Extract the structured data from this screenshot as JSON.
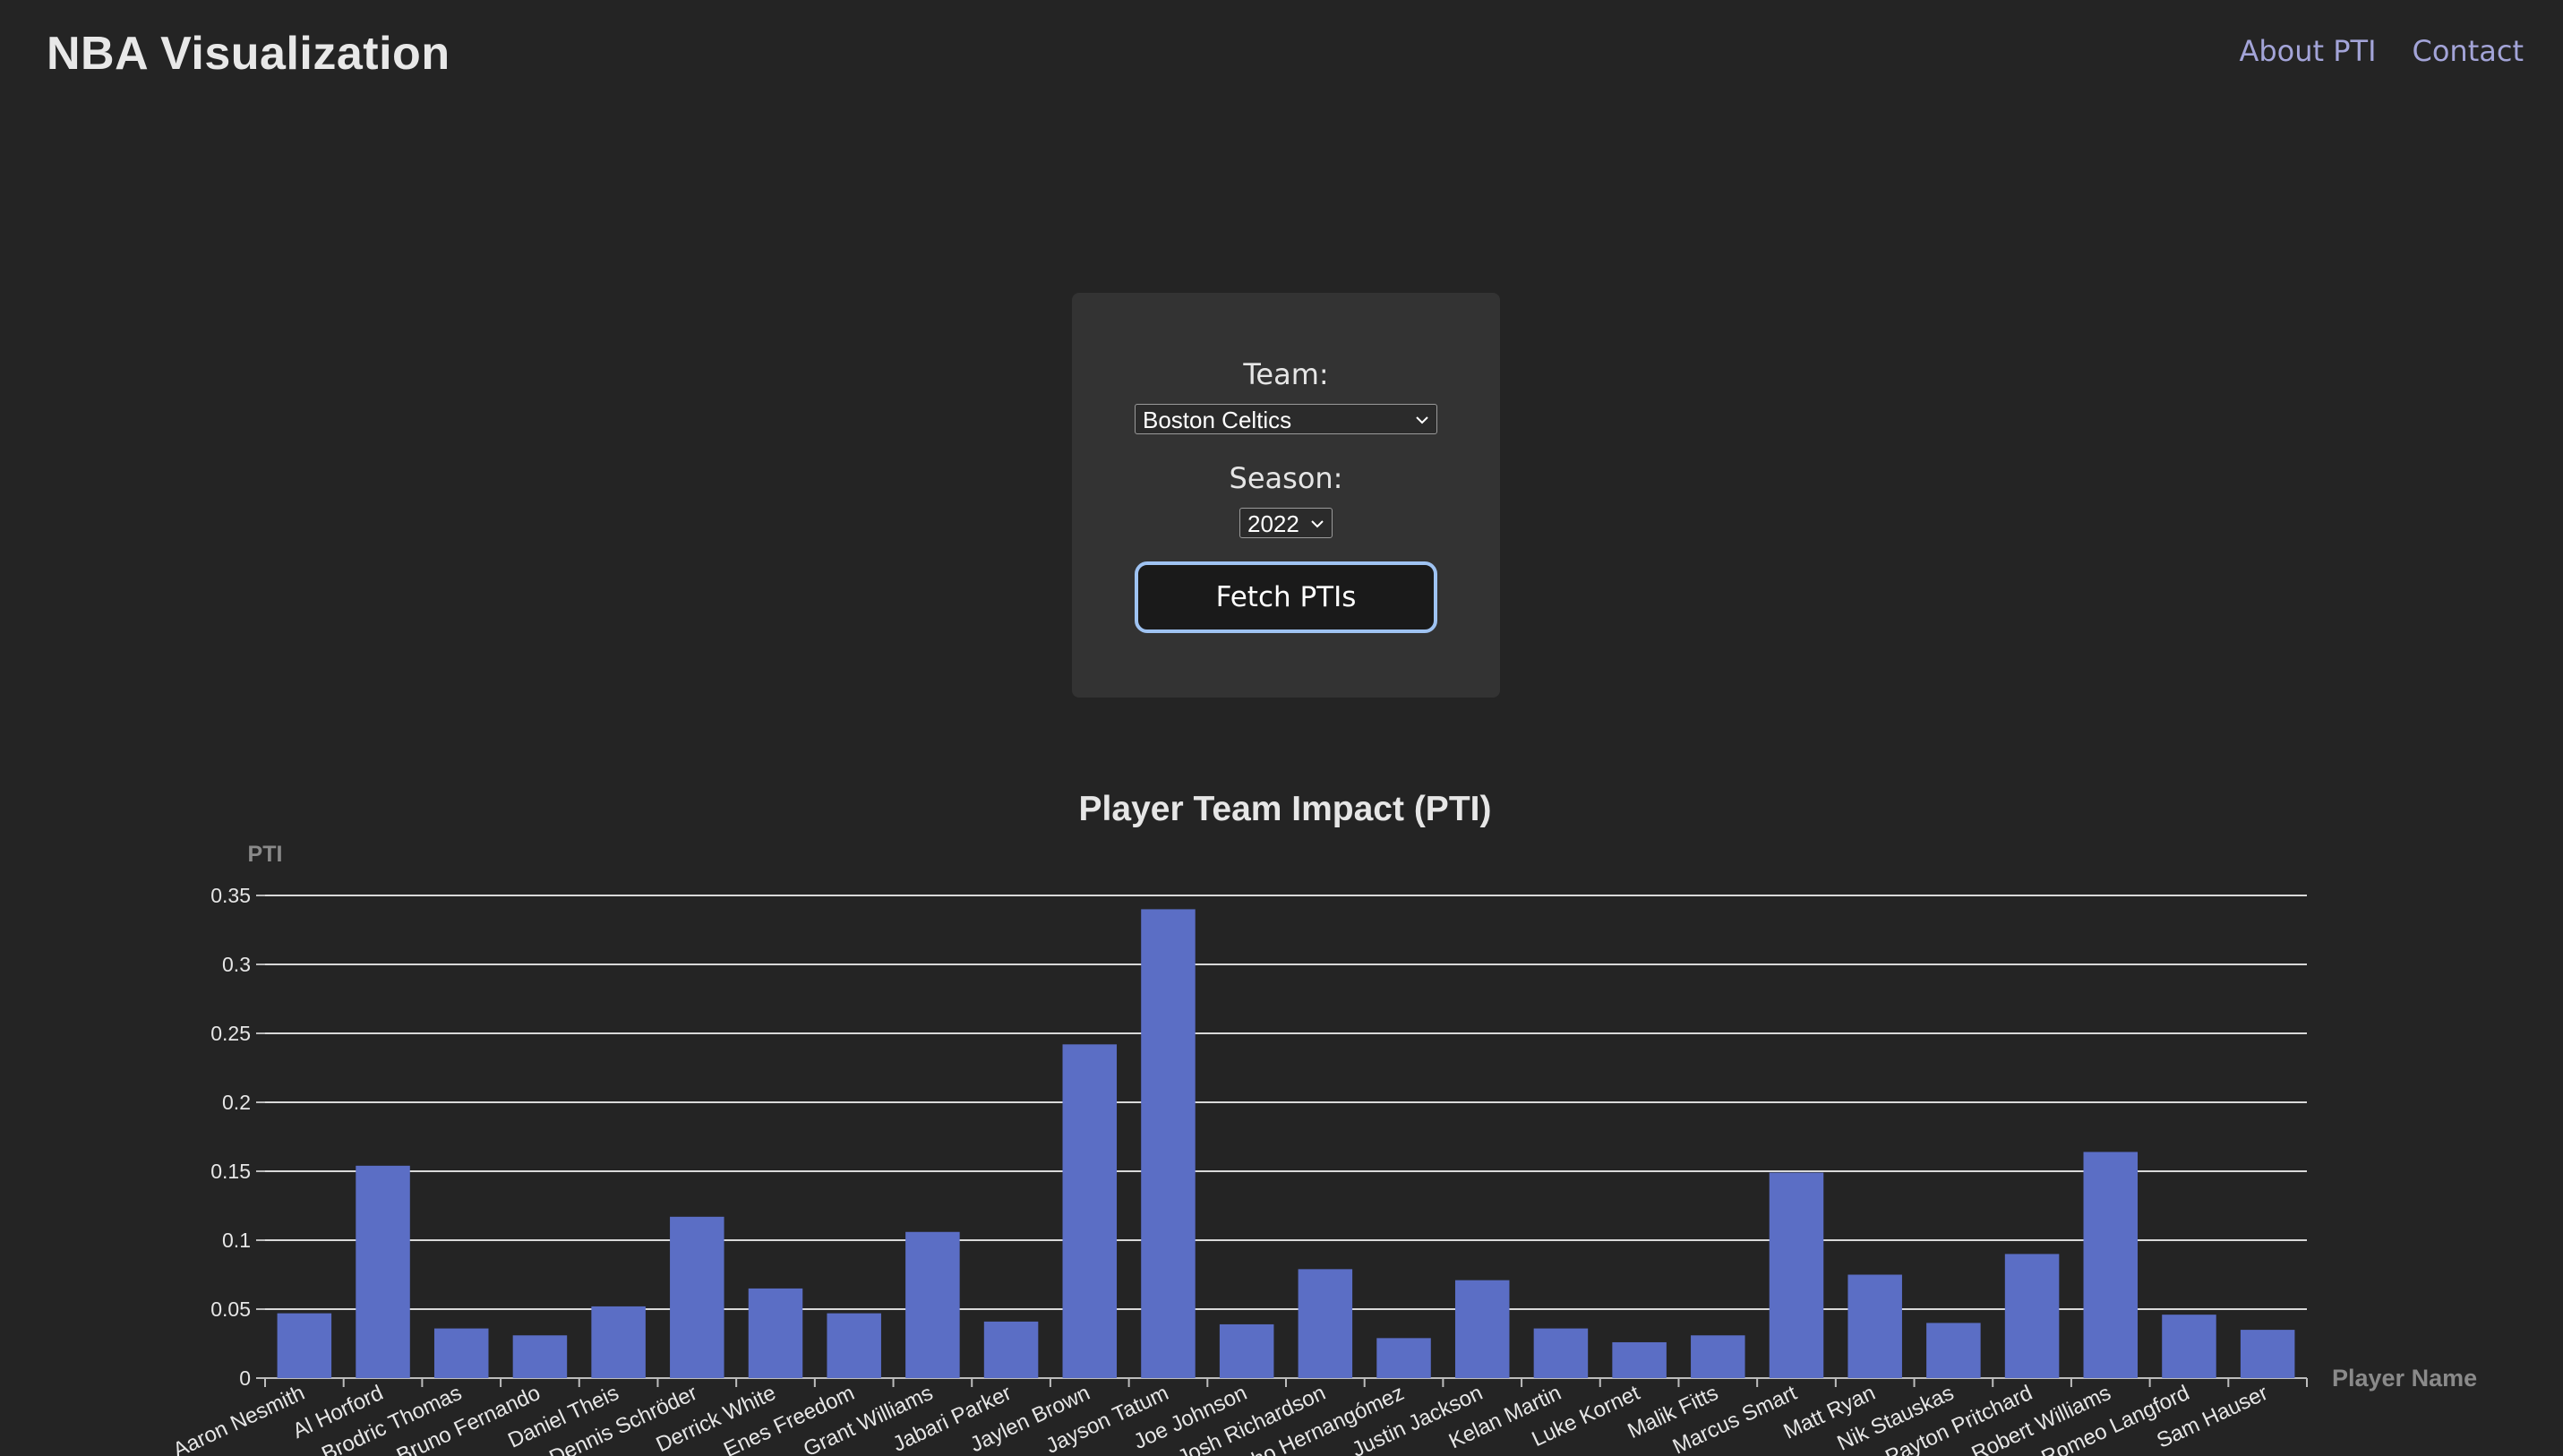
{
  "header": {
    "title": "NBA Visualization",
    "nav": [
      {
        "label": "About PTI"
      },
      {
        "label": "Contact"
      }
    ]
  },
  "form": {
    "team_label": "Team:",
    "team_value": "Boston Celtics",
    "season_label": "Season:",
    "season_value": "2022",
    "fetch_label": "Fetch PTIs"
  },
  "colors": {
    "background": "#242424",
    "panel": "#333333",
    "bar": "#5b6ec5",
    "nav_link": "#a3a4d8",
    "button_border": "#9fc3f2"
  },
  "chart_data": {
    "type": "bar",
    "title": "Player Team Impact (PTI)",
    "ylabel": "PTI",
    "xlabel": "Player Name",
    "ylim": [
      0,
      0.35
    ],
    "yticks": [
      "0",
      "0.05",
      "0.1",
      "0.15",
      "0.2",
      "0.25",
      "0.3",
      "0.35"
    ],
    "grid": true,
    "categories": [
      "Aaron Nesmith",
      "Al Horford",
      "Brodric Thomas",
      "Bruno Fernando",
      "Daniel Theis",
      "Dennis Schröder",
      "Derrick White",
      "Enes Freedom",
      "Grant Williams",
      "Jabari Parker",
      "Jaylen Brown",
      "Jayson Tatum",
      "Joe Johnson",
      "Josh Richardson",
      "Juancho Hernangómez",
      "Justin Jackson",
      "Kelan Martin",
      "Luke Kornet",
      "Malik Fitts",
      "Marcus Smart",
      "Matt Ryan",
      "Nik Stauskas",
      "Payton Pritchard",
      "Robert Williams",
      "Romeo Langford",
      "Sam Hauser"
    ],
    "values": [
      0.047,
      0.154,
      0.036,
      0.031,
      0.052,
      0.117,
      0.065,
      0.047,
      0.106,
      0.041,
      0.242,
      0.34,
      0.039,
      0.079,
      0.029,
      0.071,
      0.036,
      0.026,
      0.031,
      0.149,
      0.075,
      0.04,
      0.09,
      0.164,
      0.046,
      0.035
    ]
  }
}
